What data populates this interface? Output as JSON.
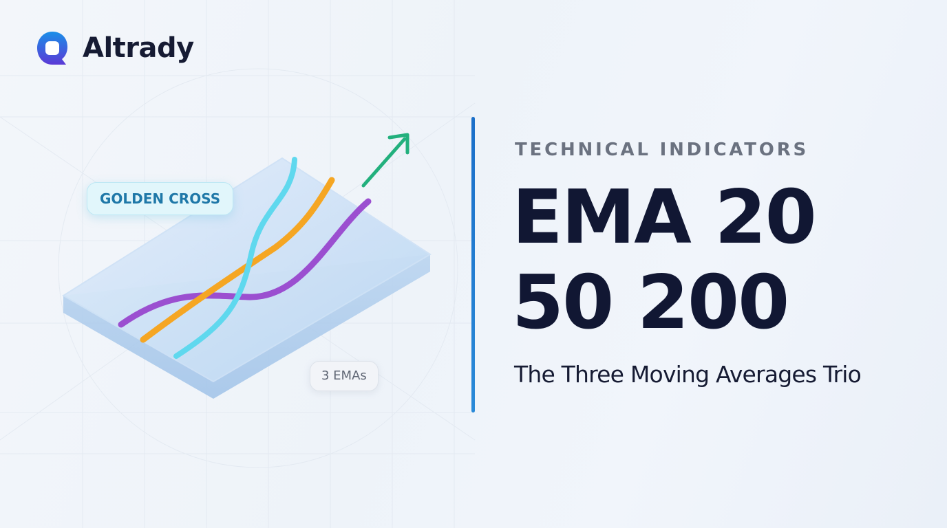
{
  "brand": {
    "name": "Altrady",
    "logo_icon": "altrady-logo-icon",
    "color_top": "#1a8fe8",
    "color_bottom": "#5b3ad6"
  },
  "illustration": {
    "golden_cross_label": "GOLDEN CROSS",
    "ema_count_label": "3 EMAs",
    "colors": {
      "ema_cyan": "#5fd8ee",
      "ema_orange": "#f5a623",
      "ema_purple": "#9b4fd0",
      "arrow": "#22b07d",
      "platform": "#cfe3f7"
    }
  },
  "content": {
    "eyebrow": "TECHNICAL INDICATORS",
    "headline_line1": "EMA 20",
    "headline_line2": "50 200",
    "subtitle": "The Three Moving Averages Trio"
  },
  "theme": {
    "accent": "#1b6fc9",
    "text_dark": "#111733",
    "text_muted": "#6b7280"
  }
}
